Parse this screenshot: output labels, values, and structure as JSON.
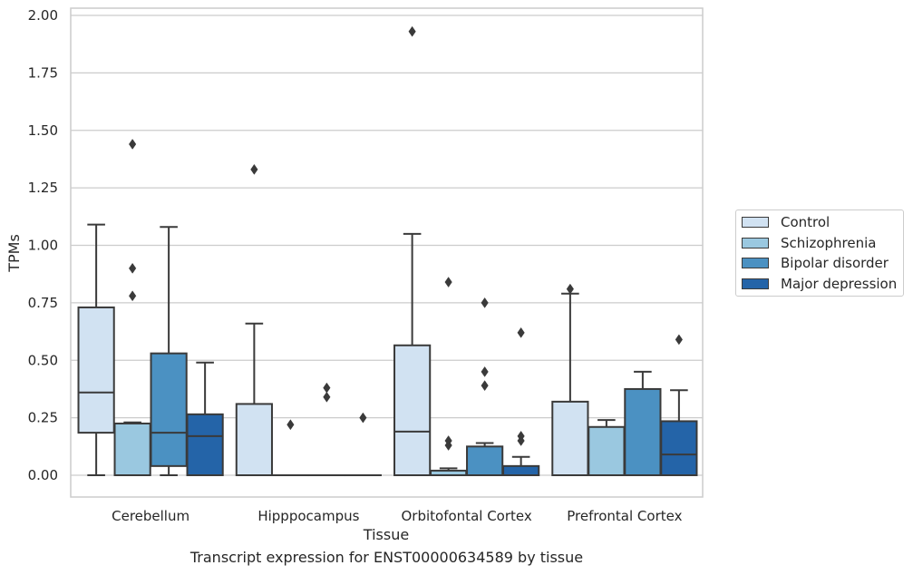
{
  "chart_data": {
    "type": "box",
    "title": "Transcript expression for ENST00000634589 by tissue",
    "xlabel": "Tissue",
    "ylabel": "TPMs",
    "ylim": [
      -0.09,
      2.03
    ],
    "yticks": [
      "0.00",
      "0.25",
      "0.50",
      "0.75",
      "1.00",
      "1.25",
      "1.50",
      "1.75",
      "2.00"
    ],
    "ytick_values": [
      0,
      0.25,
      0.5,
      0.75,
      1.0,
      1.25,
      1.5,
      1.75,
      2.0
    ],
    "grid": true,
    "legend_position": "right",
    "categories": [
      "Cerebellum",
      "Hipppocampus",
      "Orbitofontal Cortex",
      "Prefrontal Cortex"
    ],
    "series": [
      {
        "name": "Control",
        "color": "#d1e2f2",
        "boxes": [
          {
            "min": 0.0,
            "q1": 0.185,
            "median": 0.36,
            "q3": 0.73,
            "max": 1.09,
            "outliers": []
          },
          {
            "min": 0.0,
            "q1": 0.0,
            "median": 0.0,
            "q3": 0.31,
            "max": 0.66,
            "outliers": [
              1.33
            ]
          },
          {
            "min": 0.0,
            "q1": 0.0,
            "median": 0.19,
            "q3": 0.565,
            "max": 1.05,
            "outliers": [
              1.93
            ]
          },
          {
            "min": 0.0,
            "q1": 0.0,
            "median": 0.0,
            "q3": 0.32,
            "max": 0.79,
            "outliers": [
              0.81
            ]
          }
        ]
      },
      {
        "name": "Schizophrenia",
        "color": "#9ac8e0",
        "boxes": [
          {
            "min": 0.0,
            "q1": 0.0,
            "median": 0.0,
            "q3": 0.225,
            "max": 0.23,
            "outliers": [
              0.78,
              0.9,
              1.44
            ]
          },
          {
            "min": 0.0,
            "q1": 0.0,
            "median": 0.0,
            "q3": 0.0,
            "max": 0.0,
            "outliers": [
              0.22
            ]
          },
          {
            "min": 0.0,
            "q1": 0.0,
            "median": 0.0,
            "q3": 0.02,
            "max": 0.03,
            "outliers": [
              0.13,
              0.15,
              0.84
            ]
          },
          {
            "min": 0.0,
            "q1": 0.0,
            "median": 0.0,
            "q3": 0.21,
            "max": 0.24,
            "outliers": []
          }
        ]
      },
      {
        "name": "Bipolar disorder",
        "color": "#4b91c2",
        "boxes": [
          {
            "min": 0.0,
            "q1": 0.04,
            "median": 0.185,
            "q3": 0.53,
            "max": 1.08,
            "outliers": []
          },
          {
            "min": 0.0,
            "q1": 0.0,
            "median": 0.0,
            "q3": 0.0,
            "max": 0.0,
            "outliers": [
              0.34,
              0.38
            ]
          },
          {
            "min": 0.0,
            "q1": 0.0,
            "median": 0.0,
            "q3": 0.125,
            "max": 0.14,
            "outliers": [
              0.39,
              0.45,
              0.75
            ]
          },
          {
            "min": 0.0,
            "q1": 0.0,
            "median": 0.0,
            "q3": 0.375,
            "max": 0.45,
            "outliers": []
          }
        ]
      },
      {
        "name": "Major depression",
        "color": "#2464a8",
        "boxes": [
          {
            "min": 0.0,
            "q1": 0.0,
            "median": 0.17,
            "q3": 0.265,
            "max": 0.49,
            "outliers": []
          },
          {
            "min": 0.0,
            "q1": 0.0,
            "median": 0.0,
            "q3": 0.0,
            "max": 0.0,
            "outliers": [
              0.25
            ]
          },
          {
            "min": 0.0,
            "q1": 0.0,
            "median": 0.0,
            "q3": 0.04,
            "max": 0.08,
            "outliers": [
              0.15,
              0.17,
              0.62
            ]
          },
          {
            "min": 0.0,
            "q1": 0.0,
            "median": 0.09,
            "q3": 0.235,
            "max": 0.37,
            "outliers": [
              0.59
            ]
          }
        ]
      }
    ]
  }
}
